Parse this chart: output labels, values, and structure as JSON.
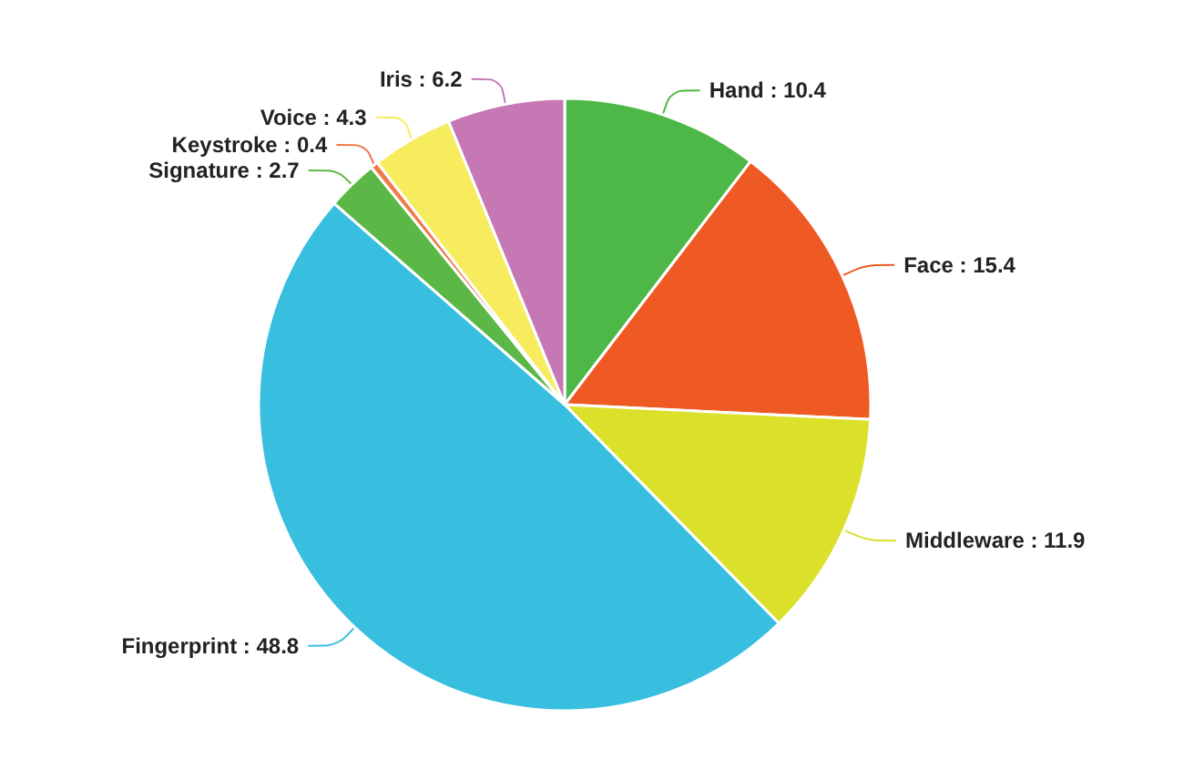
{
  "chart_data": {
    "type": "pie",
    "categories": [
      "Hand",
      "Face",
      "Middleware",
      "Fingerprint",
      "Signature",
      "Keystroke",
      "Voice",
      "Iris"
    ],
    "values": [
      10.4,
      15.4,
      11.9,
      48.8,
      2.7,
      0.4,
      4.3,
      6.2
    ],
    "value_labels": [
      ": 10.4",
      ": 15.4",
      ": 11.9",
      ": 48.8",
      ": 2.7",
      ": 0.4",
      ": 4.3",
      ": 6.2"
    ],
    "colors": [
      "#4db848",
      "#ef5a24",
      "#dbe02a",
      "#38bfdf",
      "#5cb846",
      "#f07a4a",
      "#f7ec5e",
      "#c678b4"
    ],
    "legend": false
  }
}
